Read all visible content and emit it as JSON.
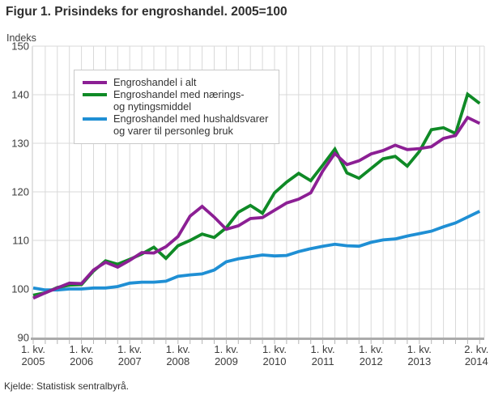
{
  "title": "Figur 1. Prisindeks for engroshandel. 2005=100",
  "y_axis_label": "Indeks",
  "source": "Kjelde: Statistisk sentralbyrå.",
  "legend": {
    "items": [
      {
        "name": "Engroshandel i alt",
        "lines": [
          "Engroshandel i alt"
        ]
      },
      {
        "name": "Engroshandel med nærings- og nytingsmiddel",
        "lines": [
          "Engroshandel med nærings-",
          "og nytingsmiddel"
        ]
      },
      {
        "name": "Engroshandel med hushaldsvarer og varer til personleg bruk",
        "lines": [
          "Engroshandel med hushaldsvarer",
          "og varer til personleg bruk"
        ]
      }
    ]
  },
  "chart_data": {
    "type": "line",
    "title": "Figur 1. Prisindeks for engroshandel. 2005=100",
    "xlabel": "",
    "ylabel": "Indeks",
    "ylim": [
      90,
      150
    ],
    "y_ticks": [
      90,
      100,
      110,
      120,
      130,
      140,
      150
    ],
    "grid": true,
    "legend_position": "upper-left",
    "x": [
      "1. kv. 2005",
      "2. kv. 2005",
      "3. kv. 2005",
      "4. kv. 2005",
      "1. kv. 2006",
      "2. kv. 2006",
      "3. kv. 2006",
      "4. kv. 2006",
      "1. kv. 2007",
      "2. kv. 2007",
      "3. kv. 2007",
      "4. kv. 2007",
      "1. kv. 2008",
      "2. kv. 2008",
      "3. kv. 2008",
      "4. kv. 2008",
      "1. kv. 2009",
      "2. kv. 2009",
      "3. kv. 2009",
      "4. kv. 2009",
      "1. kv. 2010",
      "2. kv. 2010",
      "3. kv. 2010",
      "4. kv. 2010",
      "1. kv. 2011",
      "2. kv. 2011",
      "3. kv. 2011",
      "4. kv. 2011",
      "1. kv. 2012",
      "2. kv. 2012",
      "3. kv. 2012",
      "4. kv. 2012",
      "1. kv. 2013",
      "2. kv. 2013",
      "3. kv. 2013",
      "4. kv. 2013",
      "1. kv. 2014",
      "2. kv. 2014"
    ],
    "x_axis_ticks": [
      {
        "index": 0,
        "lines": [
          "1. kv.",
          "2005"
        ]
      },
      {
        "index": 4,
        "lines": [
          "1. kv.",
          "2006"
        ]
      },
      {
        "index": 8,
        "lines": [
          "1. kv.",
          "2007"
        ]
      },
      {
        "index": 12,
        "lines": [
          "1. kv.",
          "2008"
        ]
      },
      {
        "index": 16,
        "lines": [
          "1. kv.",
          "2009"
        ]
      },
      {
        "index": 20,
        "lines": [
          "1. kv.",
          "2010"
        ]
      },
      {
        "index": 24,
        "lines": [
          "1. kv.",
          "2011"
        ]
      },
      {
        "index": 28,
        "lines": [
          "1. kv.",
          "2012"
        ]
      },
      {
        "index": 32,
        "lines": [
          "1. kv.",
          "2013"
        ]
      },
      {
        "index": 37,
        "lines": [
          "2. kv.",
          "2014"
        ]
      }
    ],
    "series": [
      {
        "name": "Engroshandel i alt",
        "color": "#8c1f94",
        "values": [
          98.1,
          99.2,
          100.2,
          101.2,
          101.1,
          103.9,
          105.5,
          104.5,
          105.9,
          107.5,
          107.4,
          108.7,
          110.8,
          115.0,
          117.0,
          114.8,
          112.3,
          113.0,
          114.5,
          114.7,
          116.2,
          117.7,
          118.5,
          119.8,
          124.3,
          127.9,
          125.6,
          126.4,
          127.8,
          128.5,
          129.6,
          128.7,
          128.9,
          129.3,
          131.0,
          131.6,
          135.3,
          134.1
        ]
      },
      {
        "name": "Engroshandel med nærings- og nytingsmiddel",
        "color": "#0f8a26",
        "values": [
          98.7,
          99.2,
          100.3,
          100.8,
          100.9,
          103.7,
          105.8,
          105.1,
          106.1,
          107.2,
          108.6,
          106.3,
          108.9,
          110.0,
          111.3,
          110.6,
          112.6,
          115.8,
          117.2,
          115.6,
          119.8,
          122.0,
          123.8,
          122.3,
          125.5,
          128.8,
          123.9,
          122.8,
          124.8,
          126.8,
          127.3,
          125.3,
          128.3,
          132.8,
          133.2,
          132.0,
          140.1,
          138.2
        ]
      },
      {
        "name": "Engroshandel med hushaldsvarer og varer til personleg bruk",
        "color": "#1f8fd4",
        "values": [
          100.2,
          99.8,
          99.8,
          100.0,
          100.0,
          100.2,
          100.2,
          100.5,
          101.2,
          101.4,
          101.4,
          101.6,
          102.6,
          102.9,
          103.1,
          103.9,
          105.6,
          106.2,
          106.6,
          107.0,
          106.8,
          106.9,
          107.7,
          108.3,
          108.8,
          109.2,
          108.9,
          108.8,
          109.6,
          110.1,
          110.3,
          110.9,
          111.4,
          111.9,
          112.8,
          113.6,
          114.8,
          116.0
        ]
      }
    ]
  }
}
